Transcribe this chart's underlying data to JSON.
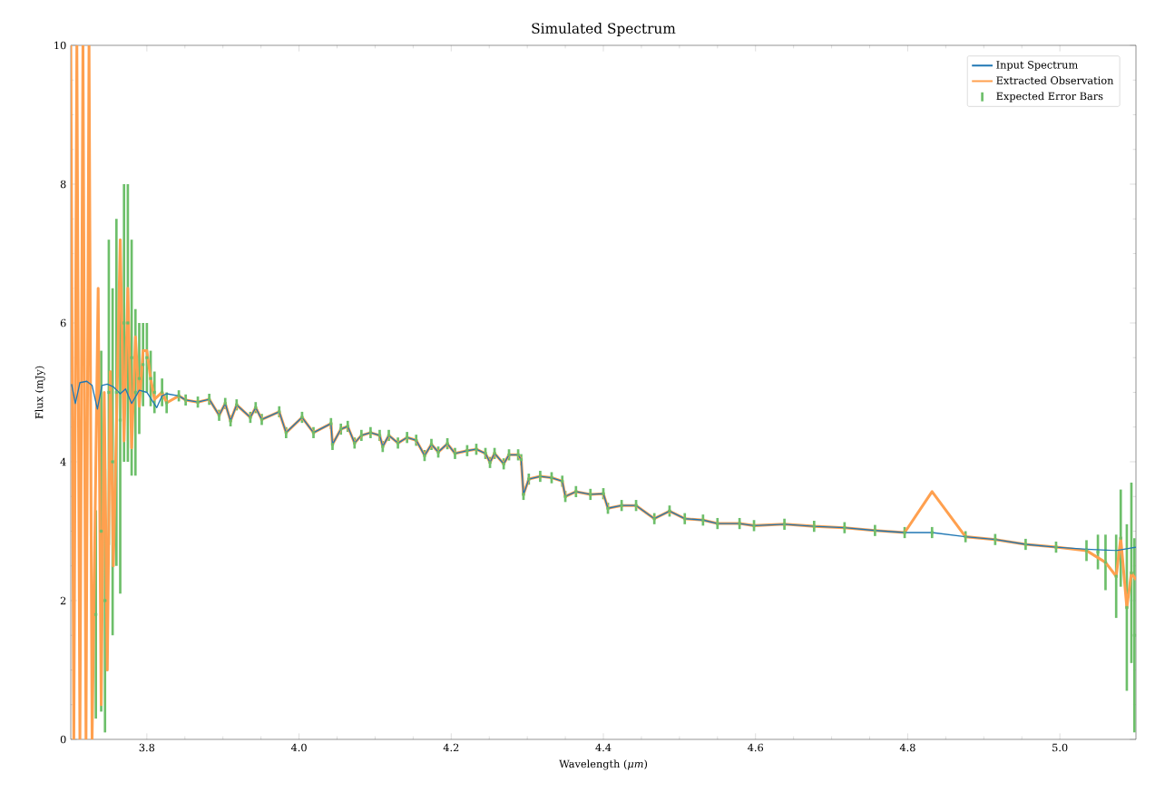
{
  "chart_data": {
    "type": "line",
    "title": "Simulated Spectrum",
    "xlabel": "Wavelength (*μm*)",
    "ylabel": "Flux (mJy)",
    "xlim": [
      3.7,
      5.1
    ],
    "ylim": [
      0,
      10
    ],
    "xticks": [
      3.8,
      {
        "value": 4.0,
        "label": "4.0"
      },
      4.2,
      4.4,
      4.6,
      4.8,
      {
        "value": 5.0,
        "label": "5.0"
      }
    ],
    "yticks": [
      0,
      2,
      4,
      6,
      8,
      10
    ],
    "legend": "top right",
    "marker": "none",
    "line_style": "solid",
    "series": [
      {
        "name": "Input Spectrum",
        "color": "#1f77b4",
        "x": [
          3.701,
          3.706,
          3.712,
          3.721,
          3.728,
          3.735,
          3.741,
          3.748,
          3.756,
          3.765,
          3.772,
          3.78,
          3.79,
          3.8,
          3.813,
          3.82,
          3.826,
          3.842,
          3.851,
          3.867,
          3.882,
          3.895,
          3.903,
          3.91,
          3.918,
          3.936,
          3.943,
          3.951,
          3.974,
          3.983,
          4.004,
          4.019,
          4.042,
          4.044,
          4.055,
          4.064,
          4.073,
          4.082,
          4.094,
          4.106,
          4.11,
          4.118,
          4.13,
          4.142,
          4.154,
          4.165,
          4.174,
          4.183,
          4.195,
          4.205,
          4.221,
          4.233,
          4.245,
          4.251,
          4.257,
          4.269,
          4.276,
          4.288,
          4.292,
          4.295,
          4.302,
          4.317,
          4.332,
          4.346,
          4.35,
          4.364,
          4.383,
          4.4,
          4.406,
          4.424,
          4.443,
          4.467,
          4.487,
          4.507,
          4.531,
          4.55,
          4.579,
          4.598,
          4.638,
          4.677,
          4.717,
          4.757,
          4.796,
          4.832,
          4.876,
          4.915,
          4.955,
          4.995,
          5.035,
          5.074,
          5.1
        ],
        "values": [
          5.12,
          4.84,
          5.14,
          5.16,
          5.1,
          4.76,
          5.1,
          5.12,
          5.08,
          4.98,
          5.05,
          4.84,
          5.03,
          5.0,
          4.78,
          4.95,
          4.98,
          4.95,
          4.89,
          4.86,
          4.9,
          4.67,
          4.84,
          4.59,
          4.82,
          4.64,
          4.78,
          4.61,
          4.72,
          4.42,
          4.64,
          4.42,
          4.55,
          4.25,
          4.47,
          4.51,
          4.27,
          4.38,
          4.42,
          4.38,
          4.22,
          4.38,
          4.27,
          4.35,
          4.31,
          4.09,
          4.25,
          4.14,
          4.26,
          4.12,
          4.16,
          4.18,
          4.12,
          3.99,
          4.12,
          3.97,
          4.1,
          4.1,
          4.03,
          3.53,
          3.75,
          3.79,
          3.77,
          3.72,
          3.5,
          3.57,
          3.53,
          3.54,
          3.33,
          3.37,
          3.37,
          3.18,
          3.29,
          3.18,
          3.16,
          3.11,
          3.11,
          3.08,
          3.1,
          3.07,
          3.05,
          3.01,
          2.98,
          2.98,
          2.92,
          2.88,
          2.81,
          2.77,
          2.74,
          2.72,
          2.77
        ]
      },
      {
        "name": "Extracted Observation",
        "color": "#ffa04f",
        "x": [
          3.7,
          3.704,
          3.708,
          3.712,
          3.716,
          3.72,
          3.724,
          3.728,
          3.732,
          3.736,
          3.74,
          3.744,
          3.748,
          3.752,
          3.756,
          3.76,
          3.765,
          3.77,
          3.775,
          3.78,
          3.785,
          3.79,
          3.795,
          3.8,
          3.805,
          3.81,
          3.82,
          3.826,
          3.842,
          3.851,
          3.867,
          3.882,
          3.895,
          3.903,
          3.91,
          3.918,
          3.936,
          3.943,
          3.951,
          3.974,
          3.983,
          4.004,
          4.019,
          4.042,
          4.044,
          4.055,
          4.064,
          4.073,
          4.082,
          4.094,
          4.106,
          4.11,
          4.118,
          4.13,
          4.142,
          4.154,
          4.165,
          4.174,
          4.183,
          4.195,
          4.205,
          4.221,
          4.233,
          4.245,
          4.251,
          4.257,
          4.269,
          4.276,
          4.288,
          4.292,
          4.295,
          4.302,
          4.317,
          4.332,
          4.346,
          4.35,
          4.364,
          4.383,
          4.4,
          4.406,
          4.424,
          4.443,
          4.467,
          4.487,
          4.507,
          4.531,
          4.55,
          4.579,
          4.598,
          4.638,
          4.677,
          4.717,
          4.757,
          4.796,
          4.832,
          4.876,
          4.915,
          4.955,
          4.995,
          5.035,
          5.06,
          5.074,
          5.08,
          5.088,
          5.094,
          5.1
        ],
        "values": [
          10,
          0,
          10,
          0,
          10,
          0,
          10,
          0,
          3.2,
          6.5,
          0.5,
          5.0,
          1.0,
          5.3,
          2.5,
          4.5,
          7.2,
          4.3,
          6.5,
          4.2,
          5.8,
          4.8,
          5.6,
          5.6,
          5.2,
          4.9,
          5.0,
          4.85,
          4.95,
          4.89,
          4.86,
          4.9,
          4.67,
          4.84,
          4.59,
          4.82,
          4.64,
          4.78,
          4.61,
          4.72,
          4.42,
          4.64,
          4.42,
          4.55,
          4.25,
          4.47,
          4.51,
          4.27,
          4.38,
          4.42,
          4.38,
          4.22,
          4.38,
          4.27,
          4.35,
          4.31,
          4.09,
          4.25,
          4.14,
          4.26,
          4.12,
          4.16,
          4.18,
          4.12,
          3.99,
          4.12,
          3.97,
          4.1,
          4.1,
          4.03,
          3.53,
          3.75,
          3.79,
          3.77,
          3.72,
          3.5,
          3.57,
          3.53,
          3.54,
          3.33,
          3.37,
          3.37,
          3.18,
          3.29,
          3.18,
          3.16,
          3.11,
          3.11,
          3.08,
          3.1,
          3.07,
          3.05,
          3.01,
          2.98,
          3.57,
          2.92,
          2.88,
          2.81,
          2.77,
          2.72,
          2.55,
          2.35,
          2.9,
          1.9,
          2.4,
          2.3
        ]
      },
      {
        "name": "Expected Error Bars",
        "color": "#6dbf6a",
        "type": "scatter",
        "marker": "square",
        "x": [
          3.733,
          3.74,
          3.745,
          3.75,
          3.755,
          3.76,
          3.765,
          3.77,
          3.775,
          3.78,
          3.785,
          3.79,
          3.795,
          3.8,
          3.805,
          3.81,
          3.82,
          3.826,
          3.842,
          3.851,
          3.867,
          3.882,
          3.895,
          3.903,
          3.91,
          3.918,
          3.936,
          3.943,
          3.951,
          3.974,
          3.983,
          4.004,
          4.019,
          4.042,
          4.044,
          4.055,
          4.064,
          4.073,
          4.082,
          4.094,
          4.106,
          4.11,
          4.118,
          4.13,
          4.142,
          4.154,
          4.165,
          4.174,
          4.183,
          4.195,
          4.205,
          4.221,
          4.233,
          4.245,
          4.251,
          4.257,
          4.269,
          4.276,
          4.288,
          4.292,
          4.295,
          4.302,
          4.317,
          4.332,
          4.346,
          4.35,
          4.364,
          4.383,
          4.4,
          4.406,
          4.424,
          4.443,
          4.467,
          4.487,
          4.507,
          4.531,
          4.55,
          4.579,
          4.598,
          4.638,
          4.677,
          4.717,
          4.757,
          4.796,
          4.832,
          4.876,
          4.915,
          4.955,
          4.995,
          5.035,
          5.05,
          5.06,
          5.074,
          5.08,
          5.088,
          5.094,
          5.098
        ],
        "values": [
          1.8,
          3.0,
          2.0,
          5.0,
          4.0,
          5.0,
          4.6,
          6.0,
          6.0,
          5.5,
          5.0,
          5.2,
          5.4,
          5.5,
          5.2,
          5.0,
          5.0,
          4.85,
          4.95,
          4.89,
          4.86,
          4.9,
          4.67,
          4.84,
          4.59,
          4.82,
          4.64,
          4.78,
          4.61,
          4.72,
          4.42,
          4.64,
          4.42,
          4.55,
          4.25,
          4.47,
          4.51,
          4.27,
          4.38,
          4.42,
          4.38,
          4.22,
          4.38,
          4.27,
          4.35,
          4.31,
          4.09,
          4.25,
          4.14,
          4.26,
          4.12,
          4.16,
          4.18,
          4.12,
          3.99,
          4.12,
          3.97,
          4.1,
          4.1,
          4.03,
          3.53,
          3.75,
          3.79,
          3.77,
          3.72,
          3.5,
          3.57,
          3.53,
          3.54,
          3.33,
          3.37,
          3.37,
          3.18,
          3.29,
          3.18,
          3.16,
          3.11,
          3.11,
          3.08,
          3.1,
          3.07,
          3.05,
          3.01,
          2.98,
          2.98,
          2.92,
          2.88,
          2.81,
          2.77,
          2.72,
          2.7,
          2.55,
          2.35,
          2.9,
          1.9,
          2.4,
          1.5
        ],
        "errors": [
          1.5,
          2.6,
          1.9,
          2.2,
          2.5,
          2.5,
          2.5,
          2.0,
          2.0,
          1.7,
          1.2,
          0.8,
          0.6,
          0.5,
          0.4,
          0.3,
          0.2,
          0.15,
          0.08,
          0.08,
          0.08,
          0.08,
          0.08,
          0.08,
          0.08,
          0.08,
          0.08,
          0.08,
          0.08,
          0.08,
          0.08,
          0.08,
          0.08,
          0.08,
          0.08,
          0.08,
          0.08,
          0.08,
          0.08,
          0.08,
          0.08,
          0.08,
          0.08,
          0.08,
          0.08,
          0.08,
          0.08,
          0.08,
          0.08,
          0.08,
          0.08,
          0.08,
          0.08,
          0.08,
          0.08,
          0.08,
          0.08,
          0.08,
          0.08,
          0.08,
          0.08,
          0.08,
          0.08,
          0.08,
          0.08,
          0.08,
          0.08,
          0.08,
          0.08,
          0.08,
          0.08,
          0.08,
          0.08,
          0.08,
          0.08,
          0.08,
          0.08,
          0.08,
          0.08,
          0.08,
          0.08,
          0.08,
          0.08,
          0.08,
          0.08,
          0.08,
          0.08,
          0.08,
          0.08,
          0.15,
          0.25,
          0.4,
          0.6,
          0.7,
          1.2,
          1.3,
          1.4
        ]
      }
    ]
  }
}
